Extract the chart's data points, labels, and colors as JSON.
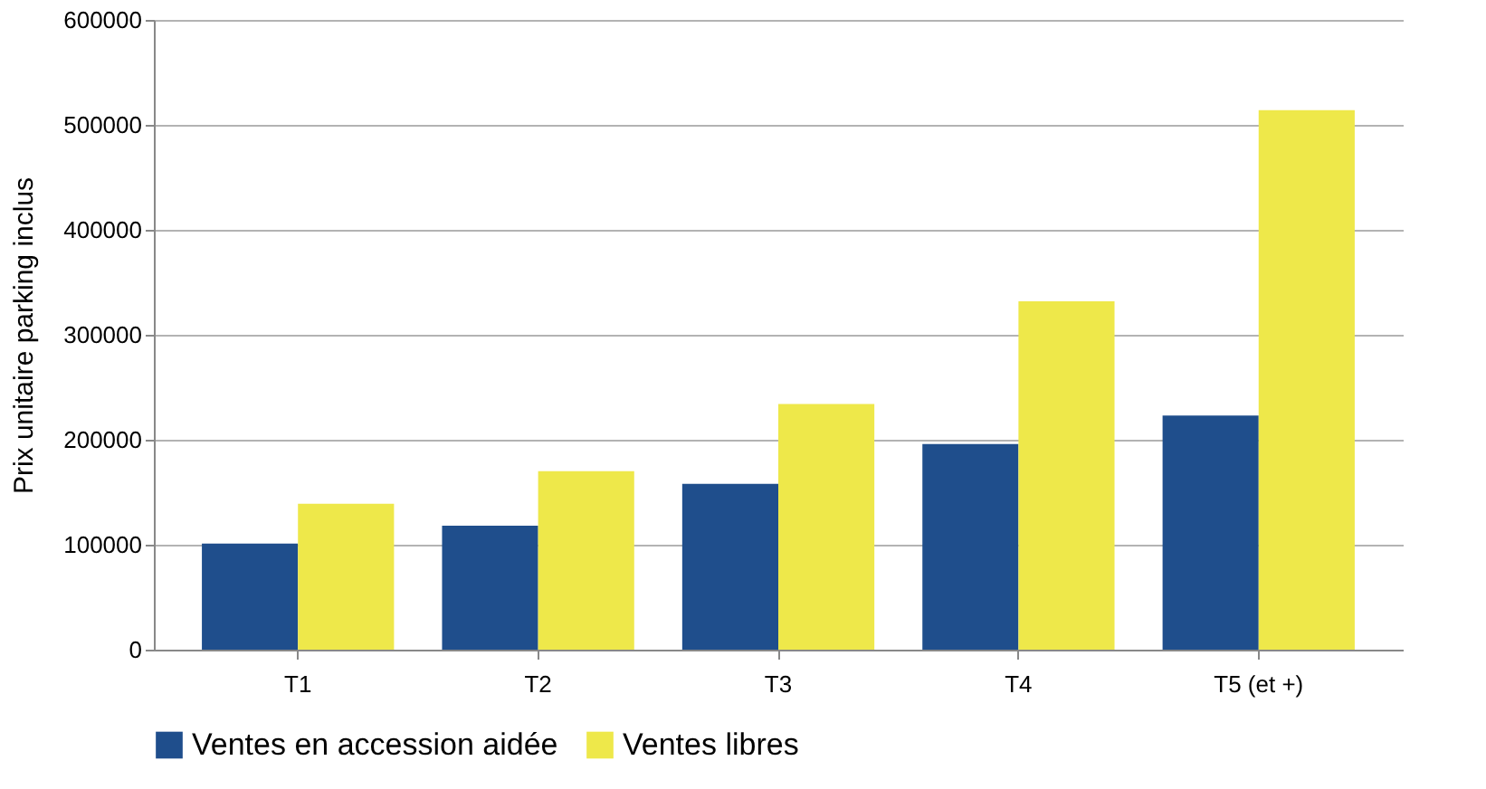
{
  "chart_data": {
    "type": "bar",
    "ylabel": "Prix unitaire parking inclus",
    "categories": [
      "T1",
      "T2",
      "T3",
      "T4",
      "T5 (et +)"
    ],
    "series": [
      {
        "name": "Ventes en accession aidée",
        "color": "#1f4e8c",
        "values": [
          101000,
          118000,
          158000,
          196000,
          223000
        ]
      },
      {
        "name": "Ventes libres",
        "color": "#eee84a",
        "values": [
          139000,
          170000,
          234000,
          332000,
          514000
        ]
      }
    ],
    "ylim": [
      0,
      600000
    ],
    "yticks": [
      0,
      100000,
      200000,
      300000,
      400000,
      500000,
      600000
    ],
    "grid": "y",
    "legend": "bottom"
  }
}
